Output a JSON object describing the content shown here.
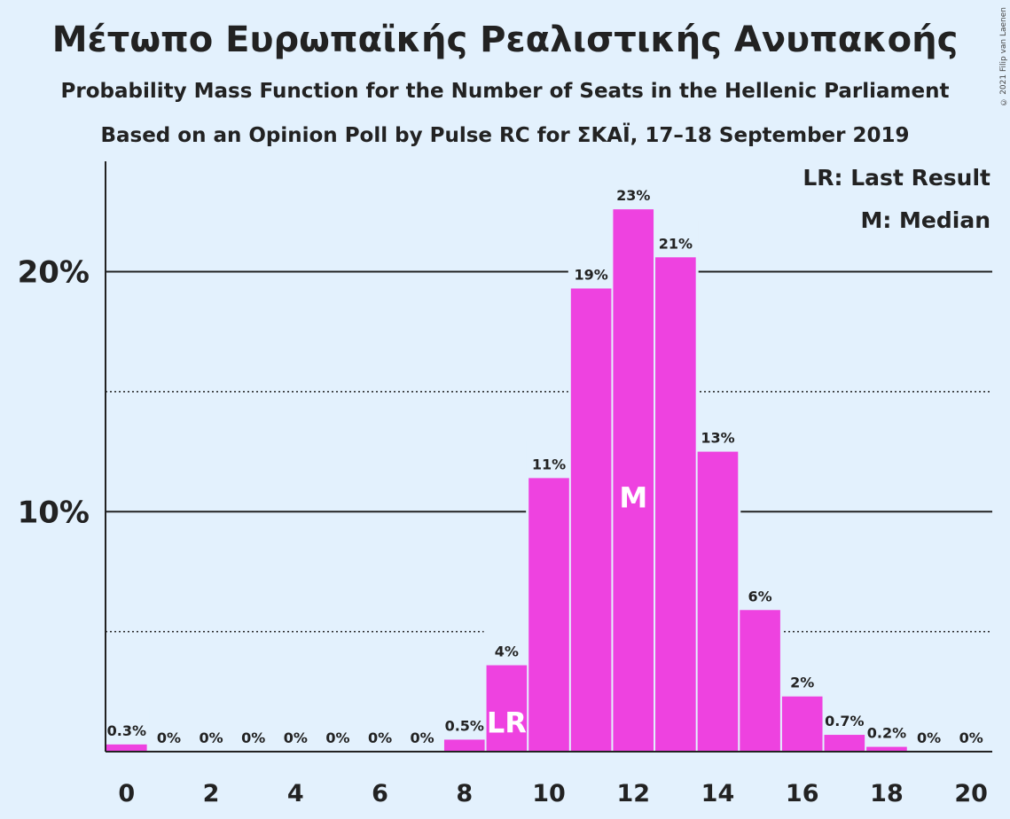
{
  "chart_data": {
    "type": "bar",
    "title": "Μέτωπο Ευρωπαϊκής Ρεαλιστικής Ανυπακοής",
    "subtitle": "Probability Mass Function for the Number of Seats in the Hellenic Parliament",
    "subtitle2": "Based on an Opinion Poll by Pulse RC for ΣΚΑΪ, 17–18 September 2019",
    "copyright": "© 2021 Filip van Laenen",
    "x": [
      0,
      1,
      2,
      3,
      4,
      5,
      6,
      7,
      8,
      9,
      10,
      11,
      12,
      13,
      14,
      15,
      16,
      17,
      18,
      19,
      20
    ],
    "values": [
      0.3,
      0,
      0,
      0,
      0,
      0,
      0,
      0,
      0.5,
      3.6,
      11.4,
      19.3,
      22.6,
      20.6,
      12.5,
      5.9,
      2.3,
      0.7,
      0.2,
      0,
      0
    ],
    "data_labels": [
      "0.3%",
      "0%",
      "0%",
      "0%",
      "0%",
      "0%",
      "0%",
      "0%",
      "0.5%",
      "4%",
      "11%",
      "19%",
      "23%",
      "21%",
      "13%",
      "6%",
      "2%",
      "0.7%",
      "0.2%",
      "0%",
      "0%"
    ],
    "x_tick_labels": [
      "0",
      "2",
      "4",
      "6",
      "8",
      "10",
      "12",
      "14",
      "16",
      "18",
      "20"
    ],
    "x_ticks": [
      0,
      2,
      4,
      6,
      8,
      10,
      12,
      14,
      16,
      18,
      20
    ],
    "y_ticks": [
      10,
      20
    ],
    "y_tick_labels": [
      "10%",
      "20%"
    ],
    "y_minor_ticks": [
      5,
      15
    ],
    "ylim": [
      0,
      24.6
    ],
    "xlim": [
      -0.5,
      20.5
    ],
    "bar_color": "#ee42e0",
    "markers": [
      {
        "x": 9,
        "label": "LR"
      },
      {
        "x": 12,
        "label": "M"
      }
    ],
    "legend": {
      "placement": "top-right",
      "entries": [
        "LR: Last Result",
        "M: Median"
      ]
    }
  }
}
